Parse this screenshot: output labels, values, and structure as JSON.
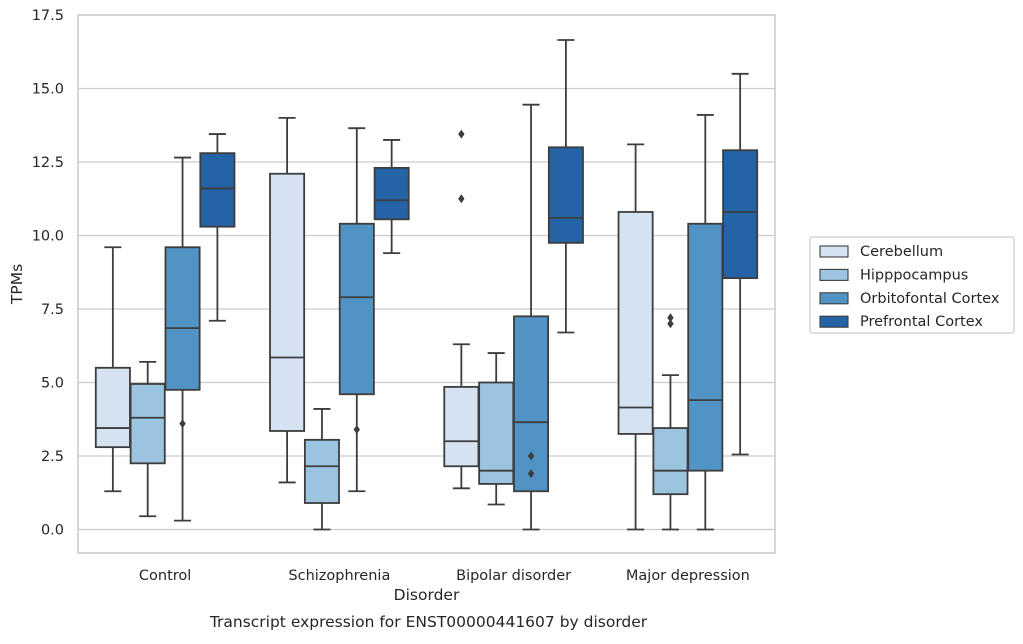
{
  "chart_data": {
    "type": "box",
    "xlabel": "Disorder",
    "ylabel": "TPMs",
    "caption": "Transcript expression for ENST00000441607 by disorder",
    "ylim": [
      -0.8,
      17.5
    ],
    "yticks": [
      "0.0",
      "2.5",
      "5.0",
      "7.5",
      "10.0",
      "12.5",
      "15.0",
      "17.5"
    ],
    "grid": "horizontal",
    "legend_placement": "right",
    "categories": [
      "Control",
      "Schizophrenia",
      "Bipolar disorder",
      "Major depression"
    ],
    "series": [
      {
        "name": "Cerebellum",
        "color": "#d4e2f2",
        "boxes": [
          {
            "whisker_low": 1.3,
            "q1": 2.8,
            "median": 3.45,
            "q3": 5.5,
            "whisker_high": 9.6,
            "outliers": []
          },
          {
            "whisker_low": 1.6,
            "q1": 3.35,
            "median": 5.85,
            "q3": 12.1,
            "whisker_high": 14.0,
            "outliers": []
          },
          {
            "whisker_low": 1.4,
            "q1": 2.15,
            "median": 3.0,
            "q3": 4.85,
            "whisker_high": 6.3,
            "outliers": [
              11.25,
              13.45
            ]
          },
          {
            "whisker_low": 0.0,
            "q1": 3.25,
            "median": 4.15,
            "q3": 10.8,
            "whisker_high": 13.1,
            "outliers": []
          }
        ]
      },
      {
        "name": "Hipppocampus",
        "color": "#9ac4df",
        "boxes": [
          {
            "whisker_low": 0.45,
            "q1": 2.25,
            "median": 3.8,
            "q3": 4.95,
            "whisker_high": 5.7,
            "outliers": []
          },
          {
            "whisker_low": 0.0,
            "q1": 0.9,
            "median": 2.15,
            "q3": 3.05,
            "whisker_high": 4.1,
            "outliers": []
          },
          {
            "whisker_low": 0.85,
            "q1": 1.55,
            "median": 2.0,
            "q3": 5.0,
            "whisker_high": 6.0,
            "outliers": []
          },
          {
            "whisker_low": 0.0,
            "q1": 1.2,
            "median": 2.0,
            "q3": 3.45,
            "whisker_high": 5.25,
            "outliers": [
              7.0,
              7.2
            ]
          }
        ]
      },
      {
        "name": "Orbitofontal Cortex",
        "color": "#5093c4",
        "boxes": [
          {
            "whisker_low": 0.3,
            "q1": 4.75,
            "median": 6.85,
            "q3": 9.6,
            "whisker_high": 12.65,
            "outliers": [
              3.6
            ]
          },
          {
            "whisker_low": 1.3,
            "q1": 4.6,
            "median": 7.9,
            "q3": 10.4,
            "whisker_high": 13.65,
            "outliers": [
              3.4
            ]
          },
          {
            "whisker_low": 0.0,
            "q1": 1.3,
            "median": 3.65,
            "q3": 7.25,
            "whisker_high": 14.45,
            "outliers": [
              1.9,
              2.5
            ]
          },
          {
            "whisker_low": 0.0,
            "q1": 2.0,
            "median": 4.4,
            "q3": 10.4,
            "whisker_high": 14.1,
            "outliers": []
          }
        ]
      },
      {
        "name": "Prefrontal Cortex",
        "color": "#2363a6",
        "boxes": [
          {
            "whisker_low": 7.1,
            "q1": 10.3,
            "median": 11.6,
            "q3": 12.8,
            "whisker_high": 13.45,
            "outliers": []
          },
          {
            "whisker_low": 9.4,
            "q1": 10.55,
            "median": 11.2,
            "q3": 12.3,
            "whisker_high": 13.25,
            "outliers": []
          },
          {
            "whisker_low": 6.7,
            "q1": 9.75,
            "median": 10.6,
            "q3": 13.0,
            "whisker_high": 16.65,
            "outliers": []
          },
          {
            "whisker_low": 2.55,
            "q1": 8.55,
            "median": 10.8,
            "q3": 12.9,
            "whisker_high": 15.5,
            "outliers": []
          }
        ]
      }
    ]
  }
}
